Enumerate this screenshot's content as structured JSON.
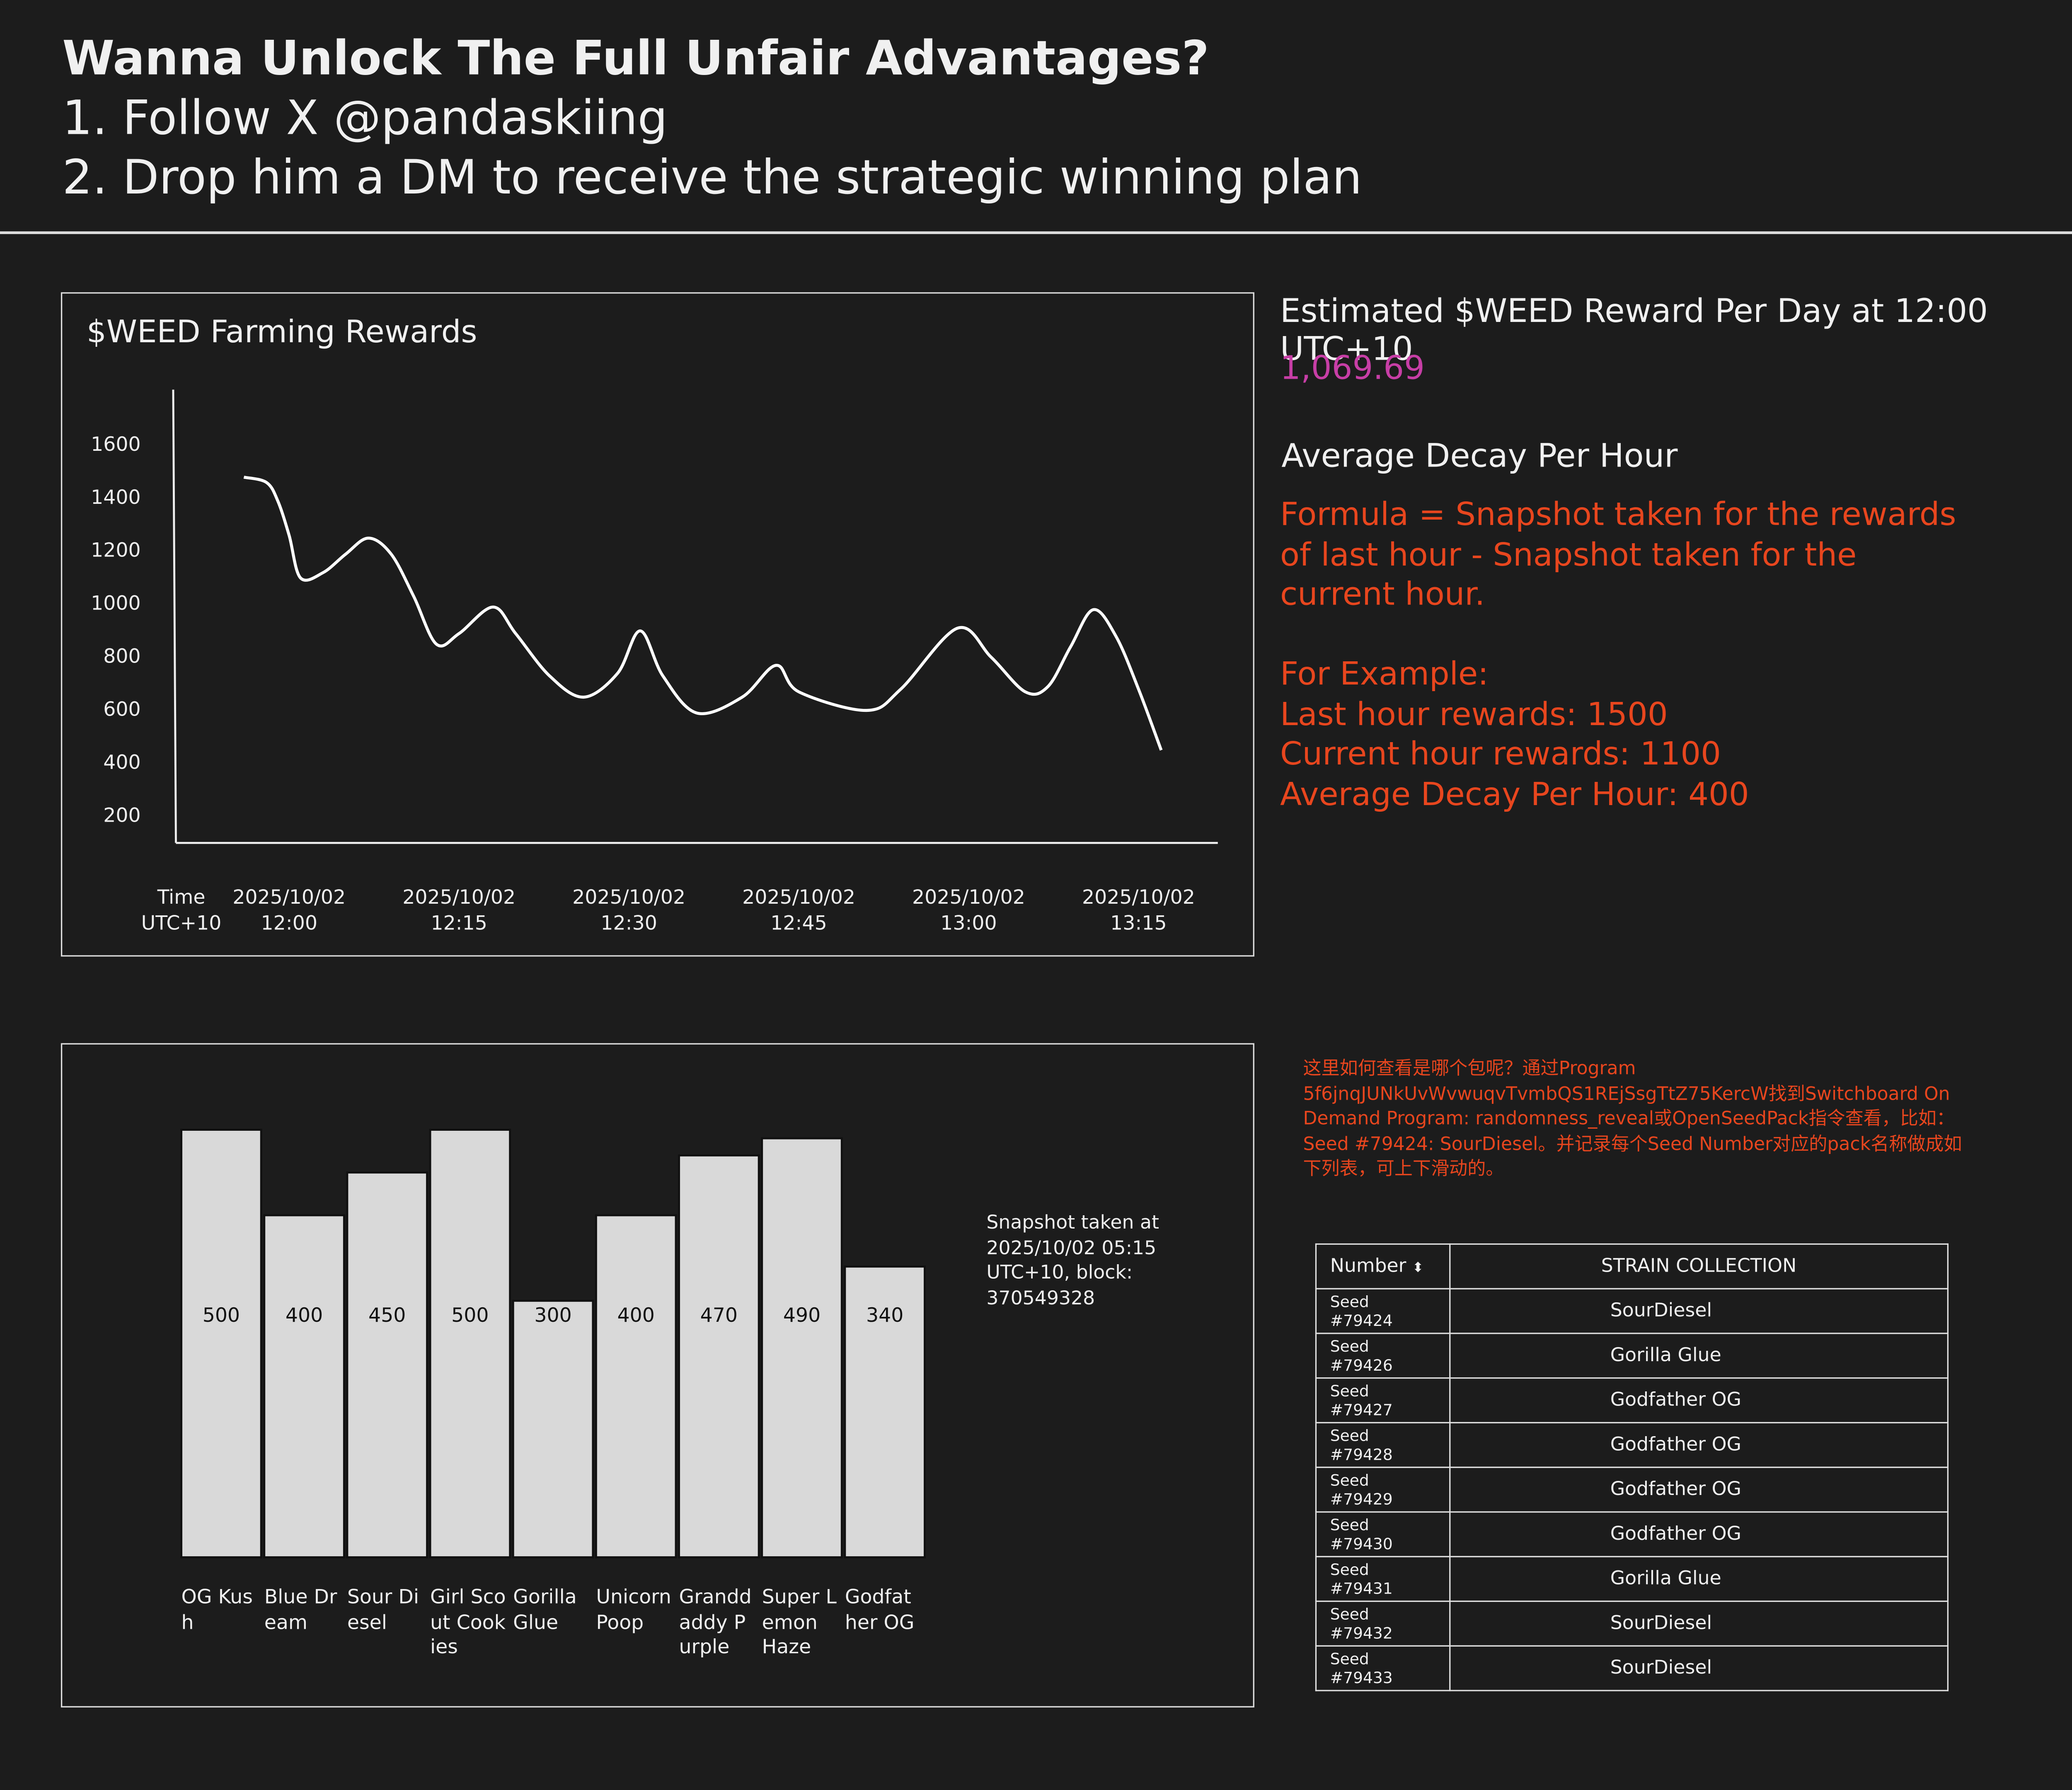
{
  "header": {
    "title": "Wanna Unlock The Full Unfair Advantages?",
    "lines": [
      "1. Follow X @pandaskiing",
      "2. Drop him a DM to receive the strategic winning plan"
    ]
  },
  "chart_data": [
    {
      "type": "line",
      "title": "$WEED Farming Rewards",
      "xlabel": "Time UTC+10",
      "color": "#ffffff",
      "x": [
        "2025/10/02 11:56",
        "2025/10/02 11:58",
        "2025/10/02 11:59",
        "2025/10/02 12:00",
        "2025/10/02 12:01",
        "2025/10/02 12:03",
        "2025/10/02 12:05",
        "2025/10/02 12:07",
        "2025/10/02 12:09",
        "2025/10/02 12:11",
        "2025/10/02 12:13",
        "2025/10/02 12:15",
        "2025/10/02 12:18",
        "2025/10/02 12:20",
        "2025/10/02 12:23",
        "2025/10/02 12:26",
        "2025/10/02 12:29",
        "2025/10/02 12:31",
        "2025/10/02 12:33",
        "2025/10/02 12:36",
        "2025/10/02 12:40",
        "2025/10/02 12:43",
        "2025/10/02 12:45",
        "2025/10/02 12:51",
        "2025/10/02 12:54",
        "2025/10/02 12:59",
        "2025/10/02 13:02",
        "2025/10/02 13:05",
        "2025/10/02 13:07",
        "2025/10/02 13:09",
        "2025/10/02 13:11",
        "2025/10/02 13:13",
        "2025/10/02 13:15",
        "2025/10/02 13:17"
      ],
      "values": [
        1480,
        1460,
        1390,
        1260,
        1100,
        1120,
        1190,
        1250,
        1190,
        1030,
        850,
        890,
        990,
        890,
        730,
        650,
        740,
        900,
        730,
        590,
        650,
        770,
        670,
        600,
        680,
        910,
        800,
        670,
        690,
        840,
        980,
        880,
        680,
        450
      ],
      "xlim": [
        "2025/10/02 11:50",
        "2025/10/02 13:22"
      ],
      "xticks": [
        "2025/10/02 12:00",
        "2025/10/02 12:15",
        "2025/10/02 12:30",
        "2025/10/02 12:45",
        "2025/10/02 13:00",
        "2025/10/02 13:15"
      ],
      "ylim": [
        100,
        1800
      ],
      "yticks": [
        200,
        400,
        600,
        800,
        1000,
        1200,
        1400,
        1600
      ]
    },
    {
      "type": "bar",
      "color": "#d9d9d9",
      "annotation": "Snapshot taken at 2025/10/02 05:15 UTC+10, block: 370549328",
      "categories": [
        "OG Kush",
        "Blue Dream",
        "Sour Diesel",
        "Girl Scout Cookies",
        "Gorilla Glue",
        "Unicorn Poop",
        "Granddaddy Purple",
        "Super Lemon Haze",
        "Godfather OG"
      ],
      "values": [
        500,
        400,
        450,
        500,
        300,
        400,
        470,
        490,
        340
      ]
    }
  ],
  "reward": {
    "label": "Estimated $WEED Reward Per Day at 12:00 UTC+10",
    "value": "1,069.69"
  },
  "decay": {
    "title": "Average Decay Per Hour",
    "formula": "Formula = Snapshot taken for the rewards of last hour - Snapshot taken for the current hour.",
    "example": [
      "For Example:",
      "Last hour rewards: 1500",
      "Current hour rewards: 1100",
      "Average Decay Per Hour: 400"
    ]
  },
  "note": "这里如何查看是哪个包呢？通过Program 5f6jnqJUNkUvWvwuqvTvmbQS1REjSsgTtZ75KercW找到Switchboard On Demand Program: randomness_reveal或OpenSeedPack指令查看，比如：Seed #79424: SourDiesel。并记录每个Seed Number对应的pack名称做成如下列表，可上下滑动的。",
  "table": {
    "columns": [
      "Number",
      "STRAIN COLLECTION"
    ],
    "rows": [
      [
        "Seed #79424",
        "SourDiesel"
      ],
      [
        "Seed #79426",
        "Gorilla Glue"
      ],
      [
        "Seed #79427",
        "Godfather OG"
      ],
      [
        "Seed #79428",
        "Godfather OG"
      ],
      [
        "Seed #79429",
        "Godfather OG"
      ],
      [
        "Seed #79430",
        "Godfather OG"
      ],
      [
        "Seed #79431",
        "Gorilla Glue"
      ],
      [
        "Seed #79432",
        "SourDiesel"
      ],
      [
        "Seed #79433",
        "SourDiesel"
      ]
    ]
  }
}
